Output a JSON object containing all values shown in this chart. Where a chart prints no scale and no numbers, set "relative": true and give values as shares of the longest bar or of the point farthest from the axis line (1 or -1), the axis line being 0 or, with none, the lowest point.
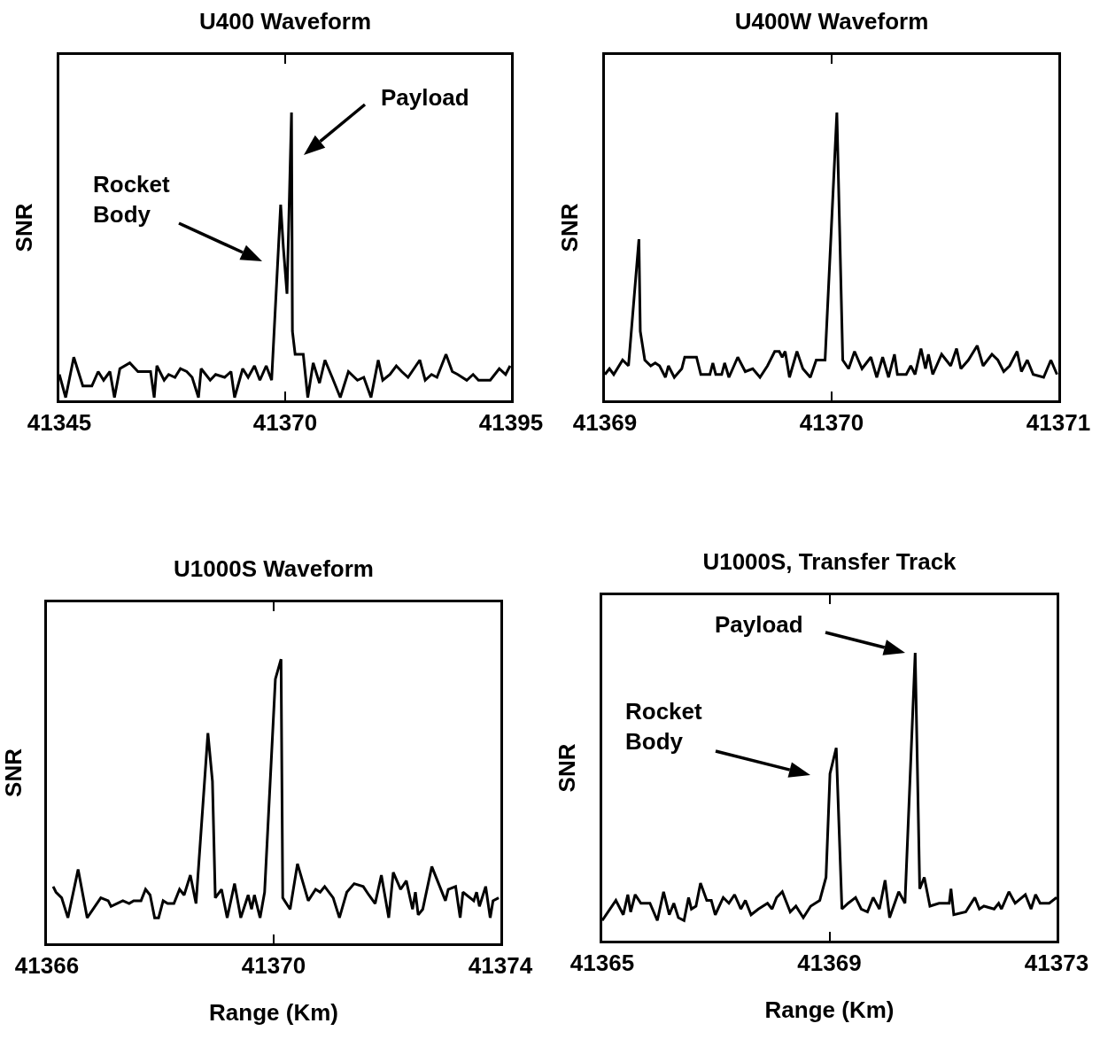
{
  "chart_data": [
    {
      "type": "line",
      "title": "U400 Waveform",
      "ylabel": "SNR",
      "relative": true,
      "xlim": [
        41345,
        41395
      ],
      "xticks": [
        41345,
        41370,
        41395
      ],
      "annotations": [
        "Payload",
        "Rocket\nBody"
      ],
      "x": [
        41345.0,
        41345.7,
        41346.6,
        41347.6,
        41348.6,
        41349.3,
        41349.9,
        41350.6,
        41351.1,
        41351.7,
        41352.8,
        41353.7,
        41355.1,
        41355.5,
        41355.8,
        41356.6,
        41357.1,
        41357.8,
        41358.4,
        41359.1,
        41359.7,
        41360.4,
        41360.7,
        41361.7,
        41362.3,
        41363.3,
        41364.0,
        41364.4,
        41365.3,
        41365.9,
        41366.6,
        41367.2,
        41367.9,
        41368.5,
        41369.5,
        41369.8,
        41370.2,
        41370.7,
        41370.8,
        41371.1,
        41372.0,
        41372.5,
        41373.1,
        41373.8,
        41374.4,
        41375.2,
        41376.1,
        41377.0,
        41378.0,
        41378.7,
        41379.5,
        41380.3,
        41380.8,
        41381.6,
        41382.3,
        41382.9,
        41383.6,
        41384.9,
        41385.5,
        41386.2,
        41386.8,
        41387.8,
        41388.5,
        41389.1,
        41390.1,
        41390.8,
        41391.4,
        41392.7,
        41393.7,
        41394.4,
        41394.9
      ],
      "series": [
        {
          "color": "#000000",
          "values": [
            0.09,
            0.01,
            0.15,
            0.05,
            0.05,
            0.1,
            0.07,
            0.1,
            0.01,
            0.11,
            0.13,
            0.1,
            0.1,
            0.01,
            0.12,
            0.07,
            0.09,
            0.08,
            0.11,
            0.1,
            0.08,
            0.01,
            0.11,
            0.07,
            0.09,
            0.08,
            0.1,
            0.01,
            0.11,
            0.08,
            0.12,
            0.07,
            0.12,
            0.07,
            0.68,
            0.53,
            0.37,
            1.0,
            0.24,
            0.16,
            0.16,
            0.01,
            0.13,
            0.06,
            0.14,
            0.08,
            0.01,
            0.1,
            0.07,
            0.08,
            0.01,
            0.14,
            0.07,
            0.09,
            0.12,
            0.1,
            0.08,
            0.14,
            0.07,
            0.09,
            0.08,
            0.16,
            0.1,
            0.09,
            0.07,
            0.09,
            0.07,
            0.07,
            0.11,
            0.09,
            0.12
          ]
        }
      ]
    },
    {
      "type": "line",
      "title": "U400W Waveform",
      "ylabel": "SNR",
      "relative": true,
      "xlim": [
        41369,
        41371
      ],
      "xticks": [
        41369,
        41370,
        41371
      ],
      "x": [
        41369.0,
        41369.02,
        41369.039,
        41369.078,
        41369.104,
        41369.15,
        41369.156,
        41369.176,
        41369.202,
        41369.222,
        41369.241,
        41369.267,
        41369.28,
        41369.306,
        41369.339,
        41369.352,
        41369.404,
        41369.423,
        41369.463,
        41369.476,
        41369.489,
        41369.515,
        41369.528,
        41369.547,
        41369.586,
        41369.619,
        41369.652,
        41369.684,
        41369.717,
        41369.749,
        41369.769,
        41369.782,
        41369.795,
        41369.814,
        41369.847,
        41369.873,
        41369.906,
        41369.932,
        41369.971,
        41370.023,
        41370.049,
        41370.075,
        41370.101,
        41370.134,
        41370.173,
        41370.199,
        41370.225,
        41370.251,
        41370.277,
        41370.29,
        41370.329,
        41370.349,
        41370.368,
        41370.394,
        41370.414,
        41370.427,
        41370.446,
        41370.485,
        41370.525,
        41370.551,
        41370.57,
        41370.603,
        41370.642,
        41370.668,
        41370.707,
        41370.733,
        41370.759,
        41370.785,
        41370.818,
        41370.837,
        41370.863,
        41370.889,
        41370.935,
        41370.967,
        41370.994
      ],
      "series": [
        {
          "color": "#000000",
          "values": [
            0.09,
            0.11,
            0.09,
            0.14,
            0.12,
            0.56,
            0.24,
            0.14,
            0.12,
            0.13,
            0.12,
            0.08,
            0.12,
            0.08,
            0.11,
            0.15,
            0.15,
            0.09,
            0.09,
            0.13,
            0.09,
            0.09,
            0.13,
            0.08,
            0.15,
            0.1,
            0.11,
            0.08,
            0.12,
            0.17,
            0.17,
            0.15,
            0.17,
            0.08,
            0.17,
            0.11,
            0.08,
            0.14,
            0.14,
            1.0,
            0.14,
            0.11,
            0.17,
            0.11,
            0.15,
            0.08,
            0.15,
            0.08,
            0.16,
            0.09,
            0.09,
            0.12,
            0.09,
            0.18,
            0.11,
            0.16,
            0.09,
            0.16,
            0.12,
            0.18,
            0.11,
            0.14,
            0.19,
            0.12,
            0.16,
            0.14,
            0.1,
            0.12,
            0.17,
            0.1,
            0.14,
            0.09,
            0.08,
            0.14,
            0.09
          ]
        }
      ]
    },
    {
      "type": "line",
      "title": "U1000S Waveform",
      "ylabel": "SNR",
      "xlabel": "Range (Km)",
      "relative": true,
      "xlim": [
        41366,
        41374
      ],
      "xticks": [
        41366,
        41370,
        41374
      ],
      "x": [
        41366.11,
        41366.16,
        41366.26,
        41366.37,
        41366.55,
        41366.71,
        41366.95,
        41367.08,
        41367.13,
        41367.34,
        41367.45,
        41367.53,
        41367.66,
        41367.74,
        41367.82,
        41367.9,
        41367.97,
        41368.05,
        41368.13,
        41368.24,
        41368.34,
        41368.42,
        41368.53,
        41368.63,
        41368.84,
        41368.92,
        41368.97,
        41369.08,
        41369.18,
        41369.31,
        41369.42,
        41369.55,
        41369.61,
        41369.66,
        41369.76,
        41369.84,
        41370.03,
        41370.13,
        41370.16,
        41370.29,
        41370.42,
        41370.61,
        41370.74,
        41370.82,
        41370.9,
        41371.05,
        41371.16,
        41371.29,
        41371.42,
        41371.58,
        41371.68,
        41371.79,
        41371.9,
        41372.03,
        41372.11,
        41372.24,
        41372.34,
        41372.45,
        41372.5,
        41372.55,
        41372.63,
        41372.79,
        41373.03,
        41373.08,
        41373.21,
        41373.29,
        41373.34,
        41373.53,
        41373.58,
        41373.63,
        41373.74,
        41373.82,
        41373.87,
        41373.97
      ],
      "series": [
        {
          "color": "#000000",
          "values": [
            0.2,
            0.18,
            0.16,
            0.09,
            0.26,
            0.09,
            0.16,
            0.15,
            0.13,
            0.15,
            0.14,
            0.15,
            0.15,
            0.19,
            0.17,
            0.09,
            0.09,
            0.15,
            0.14,
            0.14,
            0.19,
            0.17,
            0.24,
            0.14,
            0.74,
            0.57,
            0.16,
            0.19,
            0.09,
            0.21,
            0.09,
            0.17,
            0.12,
            0.17,
            0.09,
            0.18,
            0.93,
            1.0,
            0.16,
            0.12,
            0.28,
            0.15,
            0.19,
            0.18,
            0.2,
            0.16,
            0.09,
            0.18,
            0.21,
            0.2,
            0.17,
            0.14,
            0.24,
            0.09,
            0.25,
            0.19,
            0.22,
            0.12,
            0.18,
            0.1,
            0.12,
            0.27,
            0.15,
            0.19,
            0.2,
            0.09,
            0.18,
            0.15,
            0.18,
            0.13,
            0.2,
            0.09,
            0.15,
            0.16
          ]
        }
      ]
    },
    {
      "type": "line",
      "title": "U1000S, Transfer Track",
      "ylabel": "SNR",
      "xlabel": "Range (Km)",
      "relative": true,
      "xlim": [
        41365,
        41373
      ],
      "xticks": [
        41365,
        41369,
        41373
      ],
      "annotations": [
        "Payload",
        "Rocket\nBody"
      ],
      "x": [
        41365.0,
        41365.24,
        41365.37,
        41365.45,
        41365.5,
        41365.58,
        41365.68,
        41365.84,
        41365.97,
        41366.08,
        41366.18,
        41366.26,
        41366.34,
        41366.44,
        41366.52,
        41366.57,
        41366.65,
        41366.73,
        41366.84,
        41366.92,
        41366.99,
        41367.13,
        41367.23,
        41367.33,
        41367.44,
        41367.52,
        41367.62,
        41367.75,
        41367.91,
        41367.99,
        41368.07,
        41368.17,
        41368.31,
        41368.41,
        41368.54,
        41368.67,
        41368.83,
        41368.94,
        41369.01,
        41369.12,
        41369.22,
        41369.33,
        41369.46,
        41369.56,
        41369.67,
        41369.77,
        41369.88,
        41369.98,
        41370.06,
        41370.22,
        41370.33,
        41370.51,
        41370.59,
        41370.67,
        41370.77,
        41370.93,
        41371.11,
        41371.14,
        41371.19,
        41371.4,
        41371.56,
        41371.64,
        41371.72,
        41371.9,
        41371.98,
        41372.03,
        41372.16,
        41372.27,
        41372.45,
        41372.55,
        41372.63,
        41372.71,
        41372.87,
        41373.0
      ],
      "series": [
        {
          "color": "#000000",
          "values": [
            0.07,
            0.14,
            0.09,
            0.16,
            0.1,
            0.16,
            0.13,
            0.13,
            0.07,
            0.17,
            0.09,
            0.13,
            0.08,
            0.07,
            0.15,
            0.11,
            0.12,
            0.2,
            0.14,
            0.14,
            0.09,
            0.15,
            0.13,
            0.16,
            0.11,
            0.14,
            0.09,
            0.11,
            0.13,
            0.11,
            0.15,
            0.17,
            0.1,
            0.12,
            0.08,
            0.12,
            0.14,
            0.22,
            0.58,
            0.67,
            0.11,
            0.13,
            0.15,
            0.11,
            0.1,
            0.15,
            0.11,
            0.21,
            0.08,
            0.17,
            0.13,
            1.0,
            0.18,
            0.22,
            0.12,
            0.13,
            0.13,
            0.18,
            0.09,
            0.1,
            0.15,
            0.11,
            0.12,
            0.11,
            0.13,
            0.11,
            0.17,
            0.13,
            0.16,
            0.11,
            0.16,
            0.13,
            0.13,
            0.15
          ]
        }
      ]
    }
  ]
}
